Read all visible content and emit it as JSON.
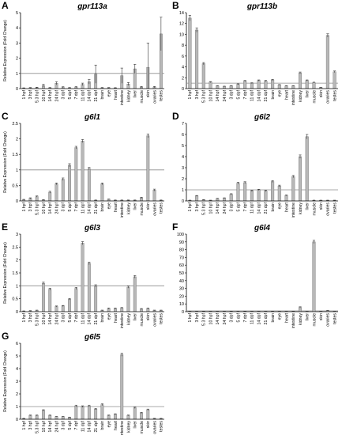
{
  "chart_data": [
    {
      "type": "bar",
      "panel": "A",
      "title": "gpr113a",
      "ylabel": "Relative Expression (Fold Change)",
      "yticks": [
        0,
        1,
        2,
        3,
        4,
        5
      ],
      "ylim": [
        0,
        5
      ],
      "reference_line": 1,
      "categories": [
        "1 hpf",
        "3 hpf",
        "5.3 hpf",
        "10 hpf",
        "14 hpf",
        "24 hpf",
        "3 dpf",
        "5 dpf",
        "7 dpf",
        "11 dpf",
        "14 dpf",
        "21 dpf",
        "brain",
        "eye",
        "heart",
        "intestine",
        "kidney",
        "liver",
        "muscle",
        "skin",
        "ovaries",
        "testes"
      ],
      "values": [
        0.03,
        0.05,
        0.06,
        0.2,
        0.05,
        0.35,
        0.08,
        0.05,
        0.1,
        0.28,
        0.45,
        0.95,
        0.05,
        0.05,
        0.04,
        0.85,
        0.3,
        1.3,
        0.1,
        1.4,
        0.1,
        3.6
      ],
      "errors": [
        0.02,
        0.02,
        0.03,
        0.08,
        0.02,
        0.1,
        0.04,
        0.02,
        0.03,
        0.08,
        0.15,
        0.6,
        0.02,
        0.02,
        0.02,
        0.5,
        0.1,
        0.3,
        0.04,
        1.6,
        0.04,
        1.1
      ]
    },
    {
      "type": "bar",
      "panel": "B",
      "title": "gpr113b",
      "ylabel": "",
      "yticks": [
        0,
        2,
        4,
        6,
        8,
        10,
        12,
        14
      ],
      "ylim": [
        0,
        14
      ],
      "reference_line": 1,
      "categories": [
        "1 hpf",
        "3 hpf",
        "5.3 hpf",
        "10 hpf",
        "14 hpf",
        "24 hpf",
        "3 dpf",
        "5 dpf",
        "7 dpf",
        "11 dpf",
        "14 dpf",
        "21 dpf",
        "brain",
        "eye",
        "heart",
        "intestine",
        "kidney",
        "liver",
        "muscle",
        "skin",
        "ovaries",
        "testes"
      ],
      "values": [
        13.0,
        10.8,
        4.6,
        1.2,
        0.5,
        0.4,
        0.5,
        0.8,
        1.4,
        1.0,
        1.5,
        1.4,
        1.6,
        0.7,
        0.5,
        0.5,
        2.9,
        1.5,
        1.1,
        0.2,
        9.8,
        3.1
      ],
      "errors": [
        0.5,
        0.4,
        0.2,
        0.1,
        0.05,
        0.05,
        0.05,
        0.08,
        0.1,
        0.08,
        0.1,
        0.1,
        0.1,
        0.05,
        0.05,
        0.05,
        0.15,
        0.1,
        0.08,
        0.03,
        0.3,
        0.15
      ]
    },
    {
      "type": "bar",
      "panel": "C",
      "title": "g6l1",
      "ylabel": "Relative Expression (Fold Change)",
      "yticks": [
        0,
        0.5,
        1,
        1.5,
        2,
        2.5
      ],
      "ylim": [
        0,
        2.5
      ],
      "reference_line": 1,
      "categories": [
        "1 hpf",
        "3 hpf",
        "5.3 hpf",
        "10 hpf",
        "14 hpf",
        "24 hpf",
        "3 dpf",
        "5 dpf",
        "7 dpf",
        "11 dpf",
        "14 dpf",
        "21 dpf",
        "brain",
        "eye",
        "heart",
        "intestine",
        "kidney",
        "liver",
        "muscle",
        "skin",
        "ovaries",
        "testes"
      ],
      "values": [
        0.04,
        0.08,
        0.14,
        0.03,
        0.28,
        0.55,
        0.7,
        1.15,
        1.72,
        1.93,
        1.04,
        0.02,
        0.55,
        0.05,
        0.02,
        0.02,
        0.02,
        0.02,
        0.1,
        2.1,
        0.35,
        0.02
      ],
      "errors": [
        0.01,
        0.02,
        0.02,
        0.01,
        0.03,
        0.03,
        0.04,
        0.05,
        0.04,
        0.05,
        0.04,
        0.01,
        0.03,
        0.01,
        0.01,
        0.01,
        0.01,
        0.01,
        0.02,
        0.06,
        0.03,
        0.01
      ]
    },
    {
      "type": "bar",
      "panel": "D",
      "title": "g6l2",
      "ylabel": "",
      "yticks": [
        0,
        1,
        2,
        3,
        4,
        5,
        6,
        7
      ],
      "ylim": [
        0,
        7
      ],
      "reference_line": 1,
      "categories": [
        "1 hpf",
        "3 hpf",
        "5.3 hpf",
        "10 hpf",
        "14 hpf",
        "24 hpf",
        "3 dpf",
        "5 dpf",
        "7 dpf",
        "11 dpf",
        "14 dpf",
        "21 dpf",
        "brain",
        "eye",
        "heart",
        "intestine",
        "kidney",
        "liver",
        "muscle",
        "skin",
        "ovaries",
        "testes"
      ],
      "values": [
        0.05,
        0.45,
        0.1,
        0.05,
        0.2,
        0.25,
        0.6,
        1.6,
        1.65,
        0.9,
        1.0,
        0.9,
        1.75,
        1.35,
        0.5,
        2.2,
        4.0,
        5.8,
        0.05,
        0.05,
        0.05,
        0.05
      ],
      "errors": [
        0.02,
        0.04,
        0.02,
        0.02,
        0.03,
        0.03,
        0.05,
        0.08,
        0.08,
        0.05,
        0.05,
        0.05,
        0.08,
        0.07,
        0.04,
        0.1,
        0.15,
        0.2,
        0.02,
        0.02,
        0.02,
        0.02
      ]
    },
    {
      "type": "bar",
      "panel": "E",
      "title": "g6l3",
      "ylabel": "Relative Expression (Fold Change)",
      "yticks": [
        0,
        0.5,
        1,
        1.5,
        2,
        2.5,
        3
      ],
      "ylim": [
        0,
        3
      ],
      "reference_line": 1,
      "categories": [
        "1 hpf",
        "3 hpf",
        "5.3 hpf",
        "10 hpf",
        "14 hpf",
        "24 hpf",
        "3 dpf",
        "5 dpf",
        "7 dpf",
        "11 dpf",
        "14 dpf",
        "21 dpf",
        "brain",
        "eye",
        "heart",
        "intestine",
        "kidney",
        "liver",
        "muscle",
        "skin",
        "ovaries",
        "testes"
      ],
      "values": [
        0.02,
        0.03,
        0.05,
        1.1,
        0.87,
        0.2,
        0.22,
        0.48,
        0.9,
        2.65,
        1.87,
        1.0,
        0.05,
        0.12,
        0.12,
        0.14,
        0.95,
        1.35,
        0.1,
        0.12,
        0.05,
        0.05
      ],
      "errors": [
        0.01,
        0.01,
        0.01,
        0.04,
        0.04,
        0.02,
        0.02,
        0.03,
        0.04,
        0.06,
        0.05,
        0.04,
        0.01,
        0.02,
        0.02,
        0.02,
        0.04,
        0.05,
        0.02,
        0.02,
        0.01,
        0.01
      ]
    },
    {
      "type": "bar",
      "panel": "F",
      "title": "g6l4",
      "ylabel": "",
      "yticks": [
        0,
        10,
        20,
        30,
        40,
        50,
        60,
        70,
        80,
        90,
        100
      ],
      "ylim": [
        0,
        100
      ],
      "reference_line": 1,
      "categories": [
        "1 hpf",
        "3 hpf",
        "5.3 hpf",
        "10 hpf",
        "14 hpf",
        "24 hpf",
        "3 dpf",
        "5 dpf",
        "7 dpf",
        "11 dpf",
        "14 dpf",
        "21 dpf",
        "brain",
        "eye",
        "heart",
        "intestine",
        "kidney",
        "liver",
        "muscle",
        "skin",
        "ovaries",
        "testes"
      ],
      "values": [
        0.3,
        0.3,
        0.5,
        0.3,
        0.3,
        0.3,
        0.5,
        0.3,
        0.5,
        0.3,
        0.3,
        0.3,
        0.5,
        0.3,
        0.3,
        0.5,
        5.5,
        0.3,
        90.0,
        0.3,
        1.5,
        0.3
      ],
      "errors": [
        0.1,
        0.1,
        0.1,
        0.1,
        0.1,
        0.1,
        0.1,
        0.1,
        0.1,
        0.1,
        0.1,
        0.1,
        0.1,
        0.1,
        0.1,
        0.1,
        0.8,
        0.1,
        2.0,
        0.1,
        0.3,
        0.1
      ]
    },
    {
      "type": "bar",
      "panel": "G",
      "title": "g6l5",
      "ylabel": "Relative Expression (Fold Change)",
      "yticks": [
        0,
        1,
        2,
        3,
        4,
        5,
        6
      ],
      "ylim": [
        0,
        6
      ],
      "reference_line": 1,
      "categories": [
        "1 hpf",
        "3 hpf",
        "5.3 hpf",
        "10 hpf",
        "14 hpf",
        "24 hpf",
        "3 dpf",
        "5 dpf",
        "7 dpf",
        "11 dpf",
        "14 dpf",
        "21 dpf",
        "brain",
        "eye",
        "heart",
        "intestine",
        "kidney",
        "liver",
        "muscle",
        "skin",
        "ovaries",
        "testes"
      ],
      "values": [
        0.05,
        0.3,
        0.3,
        0.7,
        0.3,
        0.2,
        0.2,
        0.15,
        1.05,
        1.0,
        1.05,
        0.8,
        1.15,
        0.3,
        0.4,
        5.1,
        0.3,
        0.9,
        0.5,
        0.75,
        0.05,
        0.05
      ],
      "errors": [
        0.02,
        0.03,
        0.03,
        0.05,
        0.03,
        0.02,
        0.02,
        0.02,
        0.06,
        0.06,
        0.06,
        0.05,
        0.07,
        0.03,
        0.03,
        0.12,
        0.03,
        0.05,
        0.04,
        0.05,
        0.02,
        0.02
      ]
    }
  ],
  "style": {
    "bar_fill": "#b8b8b8",
    "bar_stroke": "#6e6e6e",
    "axis_color": "#000000",
    "reference_line_color": "#8c8c8c"
  }
}
